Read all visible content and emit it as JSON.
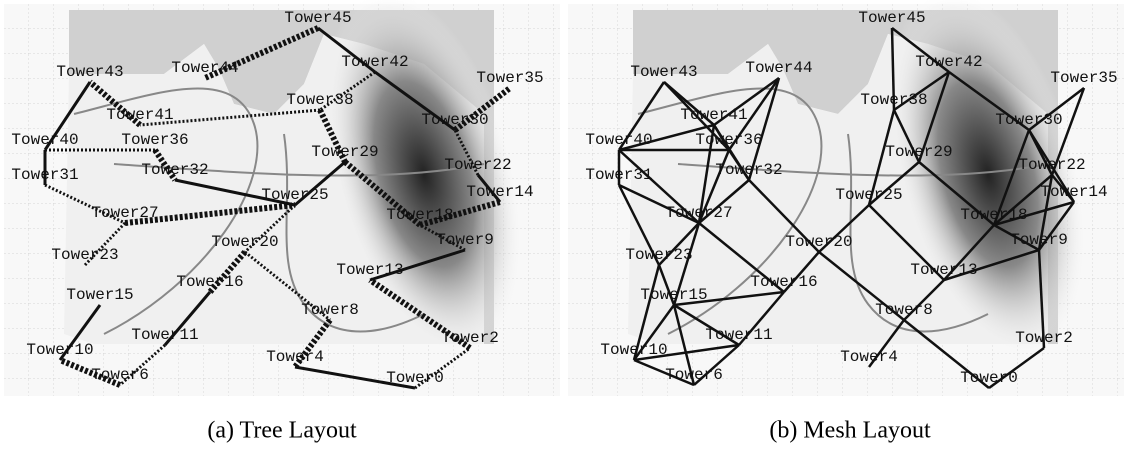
{
  "panels": [
    {
      "towers": [
        "Tower45",
        "Tower43",
        "Tower44",
        "Tower42",
        "Tower35",
        "Tower41",
        "Tower38",
        "Tower30",
        "Tower40",
        "Tower36",
        "Tower29",
        "Tower22",
        "Tower31",
        "Tower32",
        "Tower14",
        "Tower25",
        "Tower18",
        "Tower27",
        "Tower20",
        "Tower9",
        "Tower23",
        "Tower13",
        "Tower16",
        "Tower15",
        "Tower8",
        "Tower11",
        "Tower2",
        "Tower10",
        "Tower4",
        "Tower6",
        "Tower0"
      ],
      "caption": "(a) Tree Layout"
    },
    {
      "towers": [
        "Tower45",
        "Tower43",
        "Tower44",
        "Tower42",
        "Tower35",
        "Tower41",
        "Tower38",
        "Tower30",
        "Tower40",
        "Tower36",
        "Tower29",
        "Tower22",
        "Tower31",
        "Tower32",
        "Tower14",
        "Tower25",
        "Tower18",
        "Tower27",
        "Tower20",
        "Tower9",
        "Tower23",
        "Tower13",
        "Tower16",
        "Tower15",
        "Tower8",
        "Tower11",
        "Tower2",
        "Tower10",
        "Tower4",
        "Tower6",
        "Tower0"
      ],
      "caption": "(b) Mesh Layout"
    }
  ]
}
